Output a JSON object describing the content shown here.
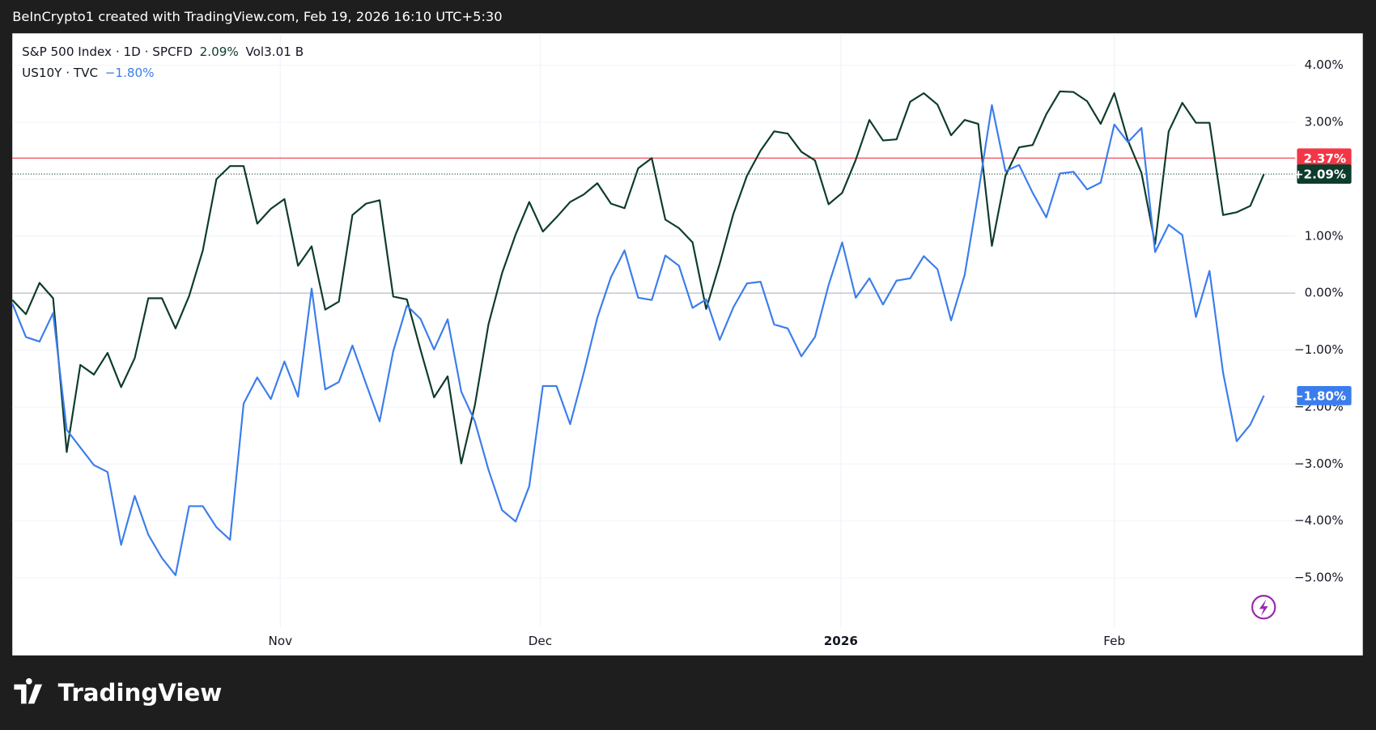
{
  "header": "BeInCrypto1 created with TradingView.com, Feb 19, 2026 16:10 UTC+5:30",
  "footer": "TradingView",
  "chart_data": {
    "type": "line",
    "x": [
      0,
      1,
      2,
      3,
      4,
      5,
      6,
      7,
      8,
      9,
      10,
      11,
      12,
      13,
      14,
      15,
      16,
      17,
      18,
      19,
      20,
      21,
      22,
      23,
      24,
      25,
      26,
      27,
      28,
      29,
      30,
      31,
      32,
      33,
      34,
      35,
      36,
      37,
      38,
      39,
      40,
      41,
      42,
      43,
      44,
      45,
      46,
      47,
      48,
      49,
      50,
      51,
      52,
      53,
      54,
      55,
      56,
      57,
      58,
      59,
      60,
      61,
      62,
      63,
      64,
      65,
      66,
      67,
      68,
      69,
      70,
      71,
      72,
      73,
      74,
      75,
      76,
      77,
      78,
      79,
      80,
      81,
      82,
      83,
      84,
      85,
      86,
      87,
      88,
      89,
      90,
      91,
      92
    ],
    "xlim": [
      0,
      94.3
    ],
    "xticks": [
      {
        "value": 19.7,
        "label": "Nov"
      },
      {
        "value": 38.8,
        "label": "Dec"
      },
      {
        "value": 60.9,
        "label": "2026"
      },
      {
        "value": 81,
        "label": "Feb"
      }
    ],
    "ylim": [
      -6.36,
      4.56
    ],
    "yticks": [
      {
        "value": 4,
        "label": "4.00%"
      },
      {
        "value": 3,
        "label": "3.00%"
      },
      {
        "value": 2,
        "label": "2.00%"
      },
      {
        "value": 1,
        "label": "1.00%"
      },
      {
        "value": 0,
        "label": "0.00%"
      },
      {
        "value": -1,
        "label": "−1.00%"
      },
      {
        "value": -2,
        "label": "−2.00%"
      },
      {
        "value": -3,
        "label": "−3.00%"
      },
      {
        "value": -4,
        "label": "−4.00%"
      },
      {
        "value": -5,
        "label": "−5.00%"
      }
    ],
    "grid": true,
    "series": [
      {
        "name": "S&P 500 Index · 1D · SPCFD",
        "change": "2.09%",
        "volume": "Vol3.01 B",
        "color": "#0d3b2c",
        "values": [
          -0.12,
          -0.37,
          0.18,
          -0.09,
          -2.79,
          -1.26,
          -1.43,
          -1.05,
          -1.65,
          -1.14,
          -0.09,
          -0.09,
          -0.62,
          -0.05,
          0.75,
          2.0,
          2.23,
          2.23,
          1.22,
          1.48,
          1.65,
          0.48,
          0.82,
          -0.29,
          -0.15,
          1.37,
          1.57,
          1.63,
          -0.06,
          -0.11,
          -0.99,
          -1.83,
          -1.46,
          -2.99,
          -1.97,
          -0.55,
          0.35,
          1.03,
          1.6,
          1.08,
          1.33,
          1.6,
          1.73,
          1.93,
          1.57,
          1.49,
          2.19,
          2.37,
          1.29,
          1.14,
          0.89,
          -0.28,
          0.52,
          1.39,
          2.06,
          2.5,
          2.84,
          2.8,
          2.48,
          2.33,
          1.56,
          1.76,
          2.34,
          3.04,
          2.68,
          2.7,
          3.36,
          3.51,
          3.31,
          2.77,
          3.04,
          2.97,
          0.83,
          2.06,
          2.56,
          2.6,
          3.14,
          3.54,
          3.53,
          3.37,
          2.97,
          3.51,
          2.68,
          2.11,
          0.86,
          2.84,
          3.34,
          2.99,
          2.99,
          1.37,
          1.42,
          1.53,
          2.09
        ]
      },
      {
        "name": "US10Y · TVC",
        "change": "−1.80%",
        "color": "#3b7ded",
        "values": [
          -0.18,
          -0.77,
          -0.85,
          -0.35,
          -2.4,
          -2.71,
          -3.02,
          -3.14,
          -4.42,
          -3.56,
          -4.24,
          -4.65,
          -4.95,
          -3.74,
          -3.74,
          -4.11,
          -4.33,
          -1.94,
          -1.48,
          -1.86,
          -1.2,
          -1.82,
          0.08,
          -1.69,
          -1.56,
          -0.92,
          -1.59,
          -2.25,
          -1.02,
          -0.22,
          -0.45,
          -0.99,
          -0.46,
          -1.73,
          -2.25,
          -3.1,
          -3.81,
          -4.01,
          -3.39,
          -1.63,
          -1.63,
          -2.3,
          -1.4,
          -0.43,
          0.28,
          0.75,
          -0.08,
          -0.12,
          0.66,
          0.48,
          -0.26,
          -0.11,
          -0.82,
          -0.25,
          0.17,
          0.2,
          -0.55,
          -0.62,
          -1.11,
          -0.77,
          0.14,
          0.89,
          -0.08,
          0.26,
          -0.2,
          0.22,
          0.26,
          0.65,
          0.42,
          -0.48,
          0.32,
          1.76,
          3.3,
          2.14,
          2.25,
          1.76,
          1.33,
          2.1,
          2.13,
          1.82,
          1.94,
          2.96,
          2.65,
          2.9,
          0.72,
          1.2,
          1.02,
          -0.42,
          0.39,
          -1.4,
          -2.6,
          -2.31,
          -1.8
        ]
      }
    ],
    "price_lines": [
      {
        "value": 2.37,
        "label": "2.37%",
        "color": "#f23645",
        "style": "solid"
      },
      {
        "value": 2.09,
        "label": "+2.09%",
        "color": "#0d3b2c",
        "style": "dotted"
      },
      {
        "value": -1.8,
        "label": "−1.80%",
        "color": "#3b7ded",
        "style": "none"
      }
    ]
  }
}
